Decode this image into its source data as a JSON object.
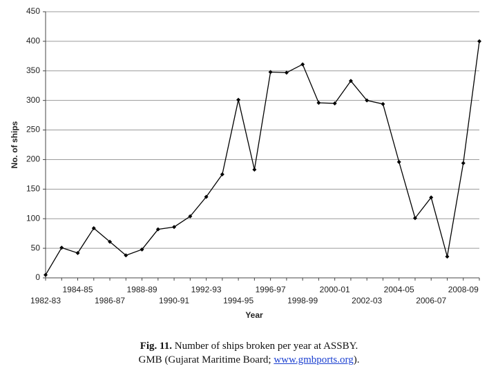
{
  "chart_data": {
    "type": "line",
    "xlabel": "Year",
    "ylabel": "No. of ships",
    "categories": [
      "1982-83",
      null,
      "1984-85",
      null,
      "1986-87",
      null,
      "1988-89",
      null,
      "1990-91",
      null,
      "1992-93",
      null,
      "1994-95",
      null,
      "1996-97",
      null,
      "1998-99",
      null,
      "2000-01",
      null,
      "2002-03",
      null,
      "2004-05",
      null,
      "2006-07",
      null,
      "2008-09",
      null
    ],
    "values": [
      5,
      51,
      42,
      84,
      61,
      38,
      48,
      82,
      86,
      104,
      137,
      175,
      301,
      183,
      348,
      347,
      361,
      296,
      295,
      333,
      300,
      294,
      196,
      101,
      136,
      36,
      194,
      400
    ],
    "color": "#000000",
    "ylim": [
      0,
      450
    ],
    "yticks": [
      0,
      50,
      100,
      150,
      200,
      250,
      300,
      350,
      400,
      450
    ],
    "grid": true,
    "caption": {
      "label": "Fig. 11.",
      "text": " Number of ships broken per year at ASSBY.",
      "source_prefix": "GMB (Gujarat Maritime Board; ",
      "link": "www.gmbports.org",
      "source_suffix": ")."
    }
  }
}
